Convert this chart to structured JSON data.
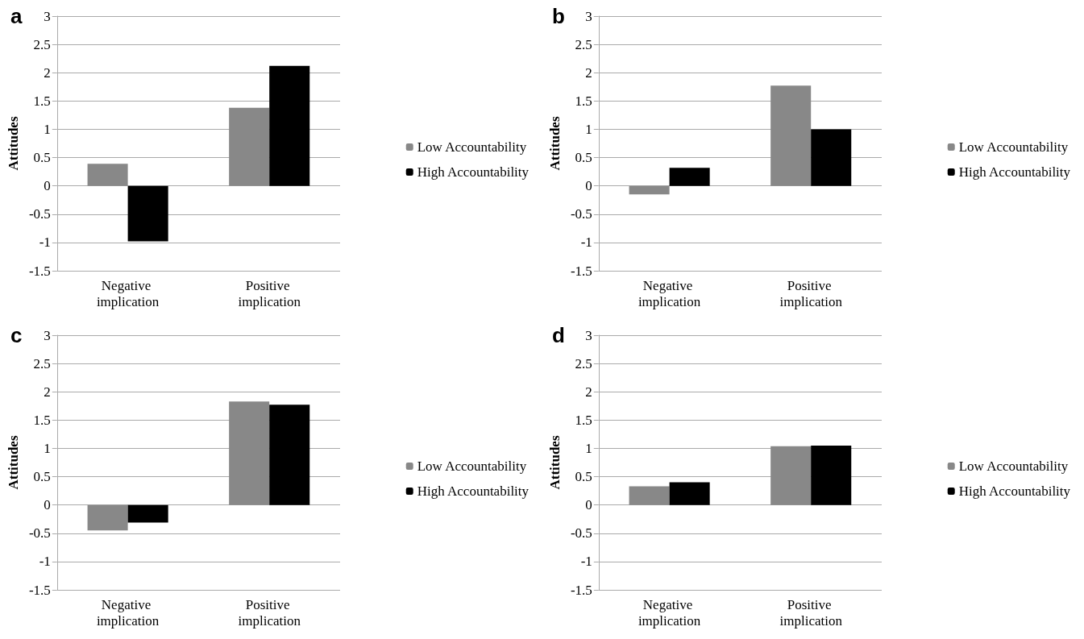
{
  "chart_data": [
    {
      "type": "bar",
      "title": "a",
      "ylabel": "Attitudes",
      "categories": [
        "Negative implication",
        "Positive implication"
      ],
      "series": [
        {
          "name": "Low Accountability",
          "color": "#888888",
          "values": [
            0.39,
            1.38
          ]
        },
        {
          "name": "High Accountability",
          "color": "#000000",
          "values": [
            -0.98,
            2.12
          ]
        }
      ],
      "ylim": [
        -1.5,
        3
      ],
      "yticks": [
        -1.5,
        -1,
        -0.5,
        0,
        0.5,
        1,
        1.5,
        2,
        2.5,
        3
      ],
      "grid": "y",
      "legend": "right"
    },
    {
      "type": "bar",
      "title": "b",
      "ylabel": "Attitudes",
      "categories": [
        "Negative implication",
        "Positive implication"
      ],
      "series": [
        {
          "name": "Low Accountability",
          "color": "#888888",
          "values": [
            -0.15,
            1.77
          ]
        },
        {
          "name": "High Accountability",
          "color": "#000000",
          "values": [
            0.32,
            1.0
          ]
        }
      ],
      "ylim": [
        -1.5,
        3
      ],
      "yticks": [
        -1.5,
        -1,
        -0.5,
        0,
        0.5,
        1,
        1.5,
        2,
        2.5,
        3
      ],
      "grid": "y",
      "legend": "right"
    },
    {
      "type": "bar",
      "title": "c",
      "ylabel": "Attitudes",
      "categories": [
        "Negative implication",
        "Positive implication"
      ],
      "series": [
        {
          "name": "Low Accountability",
          "color": "#888888",
          "values": [
            -0.45,
            1.83
          ]
        },
        {
          "name": "High Accountability",
          "color": "#000000",
          "values": [
            -0.31,
            1.77
          ]
        }
      ],
      "ylim": [
        -1.5,
        3
      ],
      "yticks": [
        -1.5,
        -1,
        -0.5,
        0,
        0.5,
        1,
        1.5,
        2,
        2.5,
        3
      ],
      "grid": "y",
      "legend": "right"
    },
    {
      "type": "bar",
      "title": "d",
      "ylabel": "Attitudes",
      "categories": [
        "Negative implication",
        "Positive implication"
      ],
      "series": [
        {
          "name": "Low Accountability",
          "color": "#888888",
          "values": [
            0.33,
            1.04
          ]
        },
        {
          "name": "High Accountability",
          "color": "#000000",
          "values": [
            0.4,
            1.05
          ]
        }
      ],
      "ylim": [
        -1.5,
        3
      ],
      "yticks": [
        -1.5,
        -1,
        -0.5,
        0,
        0.5,
        1,
        1.5,
        2,
        2.5,
        3
      ],
      "grid": "y",
      "legend": "right"
    }
  ]
}
